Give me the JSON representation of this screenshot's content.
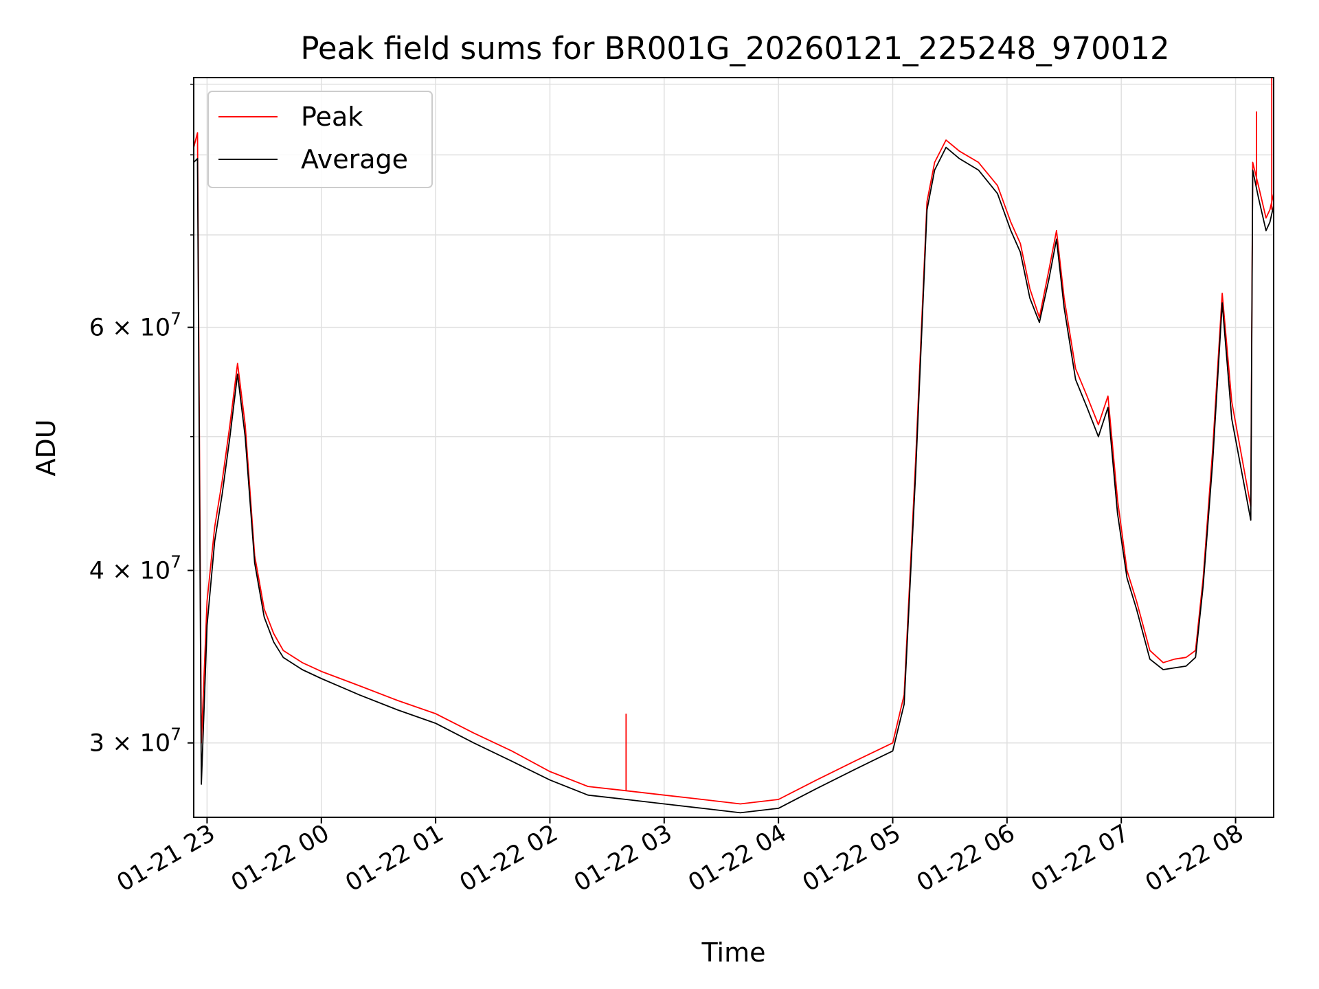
{
  "chart_data": {
    "type": "line",
    "title": "Peak field sums for BR001G_20260121_225248_970012",
    "xlabel": "Time",
    "ylabel": "ADU",
    "yscale": "log",
    "ylim": [
      26500000,
      91000000
    ],
    "xlim": [
      "2026-01-21 22:53",
      "2026-01-22 08:20"
    ],
    "grid": true,
    "legend_position": "upper-left",
    "x_ticks": [
      "01-21 23",
      "01-22 00",
      "01-22 01",
      "01-22 02",
      "01-22 03",
      "01-22 04",
      "01-22 05",
      "01-22 06",
      "01-22 07",
      "01-22 08"
    ],
    "x_tick_times": [
      "2026-01-21 23:00",
      "2026-01-22 00:00",
      "2026-01-22 01:00",
      "2026-01-22 02:00",
      "2026-01-22 03:00",
      "2026-01-22 04:00",
      "2026-01-22 05:00",
      "2026-01-22 06:00",
      "2026-01-22 07:00",
      "2026-01-22 08:00"
    ],
    "y_ticks": [
      {
        "value": 30000000,
        "mantissa": "3",
        "base": "10",
        "exp": "7"
      },
      {
        "value": 40000000,
        "mantissa": "4",
        "base": "10",
        "exp": "7"
      },
      {
        "value": 60000000,
        "mantissa": "6",
        "base": "10",
        "exp": "7"
      }
    ],
    "y_minor_ticks": [
      50000000,
      70000000,
      80000000,
      90000000
    ],
    "x": [
      "2026-01-21 22:53",
      "2026-01-21 22:55",
      "2026-01-21 22:57",
      "2026-01-21 23:00",
      "2026-01-21 23:04",
      "2026-01-21 23:08",
      "2026-01-21 23:12",
      "2026-01-21 23:16",
      "2026-01-21 23:20",
      "2026-01-21 23:25",
      "2026-01-21 23:30",
      "2026-01-21 23:35",
      "2026-01-21 23:40",
      "2026-01-21 23:50",
      "2026-01-22 00:00",
      "2026-01-22 00:20",
      "2026-01-22 00:40",
      "2026-01-22 01:00",
      "2026-01-22 01:20",
      "2026-01-22 01:40",
      "2026-01-22 02:00",
      "2026-01-22 02:20",
      "2026-01-22 02:40",
      "2026-01-22 03:00",
      "2026-01-22 03:20",
      "2026-01-22 03:40",
      "2026-01-22 04:00",
      "2026-01-22 04:20",
      "2026-01-22 04:40",
      "2026-01-22 05:00",
      "2026-01-22 05:06",
      "2026-01-22 05:12",
      "2026-01-22 05:18",
      "2026-01-22 05:22",
      "2026-01-22 05:28",
      "2026-01-22 05:35",
      "2026-01-22 05:45",
      "2026-01-22 05:55",
      "2026-01-22 06:02",
      "2026-01-22 06:07",
      "2026-01-22 06:12",
      "2026-01-22 06:17",
      "2026-01-22 06:22",
      "2026-01-22 06:26",
      "2026-01-22 06:30",
      "2026-01-22 06:36",
      "2026-01-22 06:42",
      "2026-01-22 06:48",
      "2026-01-22 06:53",
      "2026-01-22 06:58",
      "2026-01-22 07:03",
      "2026-01-22 07:08",
      "2026-01-22 07:15",
      "2026-01-22 07:22",
      "2026-01-22 07:28",
      "2026-01-22 07:34",
      "2026-01-22 07:39",
      "2026-01-22 07:43",
      "2026-01-22 07:48",
      "2026-01-22 07:53",
      "2026-01-22 07:58",
      "2026-01-22 08:08",
      "2026-01-22 08:09",
      "2026-01-22 08:12",
      "2026-01-22 08:16",
      "2026-01-22 08:18",
      "2026-01-22 08:20"
    ],
    "series": [
      {
        "name": "Peak",
        "color": "#ff0000",
        "values": [
          81000000,
          83000000,
          30000000,
          38000000,
          43000000,
          46500000,
          51000000,
          56500000,
          51000000,
          41000000,
          37500000,
          36000000,
          35000000,
          34300000,
          33800000,
          33000000,
          32200000,
          31500000,
          30500000,
          29600000,
          28600000,
          27900000,
          27700000,
          27500000,
          27300000,
          27100000,
          27300000,
          28200000,
          29100000,
          30000000,
          32500000,
          48000000,
          74000000,
          79000000,
          82000000,
          80500000,
          79000000,
          76000000,
          71500000,
          69000000,
          64000000,
          61000000,
          66000000,
          70500000,
          63000000,
          56000000,
          53500000,
          51000000,
          53500000,
          45000000,
          40000000,
          38000000,
          35000000,
          34300000,
          34500000,
          34600000,
          35000000,
          39500000,
          49000000,
          63500000,
          53000000,
          44500000,
          79000000,
          76000000,
          72000000,
          73000000,
          75000000
        ]
      },
      {
        "name": "Average",
        "color": "#000000",
        "values": [
          79000000,
          79500000,
          28000000,
          36500000,
          42000000,
          45500000,
          50000000,
          55500000,
          50000000,
          40500000,
          37000000,
          35500000,
          34600000,
          33900000,
          33400000,
          32500000,
          31700000,
          31000000,
          30000000,
          29100000,
          28200000,
          27500000,
          27300000,
          27100000,
          26900000,
          26700000,
          26900000,
          27800000,
          28700000,
          29600000,
          32000000,
          47000000,
          73000000,
          78000000,
          81000000,
          79500000,
          78000000,
          75000000,
          70500000,
          68000000,
          63000000,
          60500000,
          65000000,
          69500000,
          62000000,
          55000000,
          52500000,
          50000000,
          52500000,
          44000000,
          39500000,
          37500000,
          34500000,
          33900000,
          34000000,
          34100000,
          34600000,
          39000000,
          48000000,
          62500000,
          51500000,
          43500000,
          78000000,
          74500000,
          70500000,
          71500000,
          73500000
        ]
      }
    ],
    "spikes": [
      {
        "series": "Peak",
        "x": "2026-01-22 02:40",
        "y": 31500000
      },
      {
        "series": "Peak",
        "x": "2026-01-22 08:11",
        "y": 86000000
      },
      {
        "series": "Peak",
        "x": "2026-01-22 08:19",
        "y": 91000000
      }
    ]
  }
}
